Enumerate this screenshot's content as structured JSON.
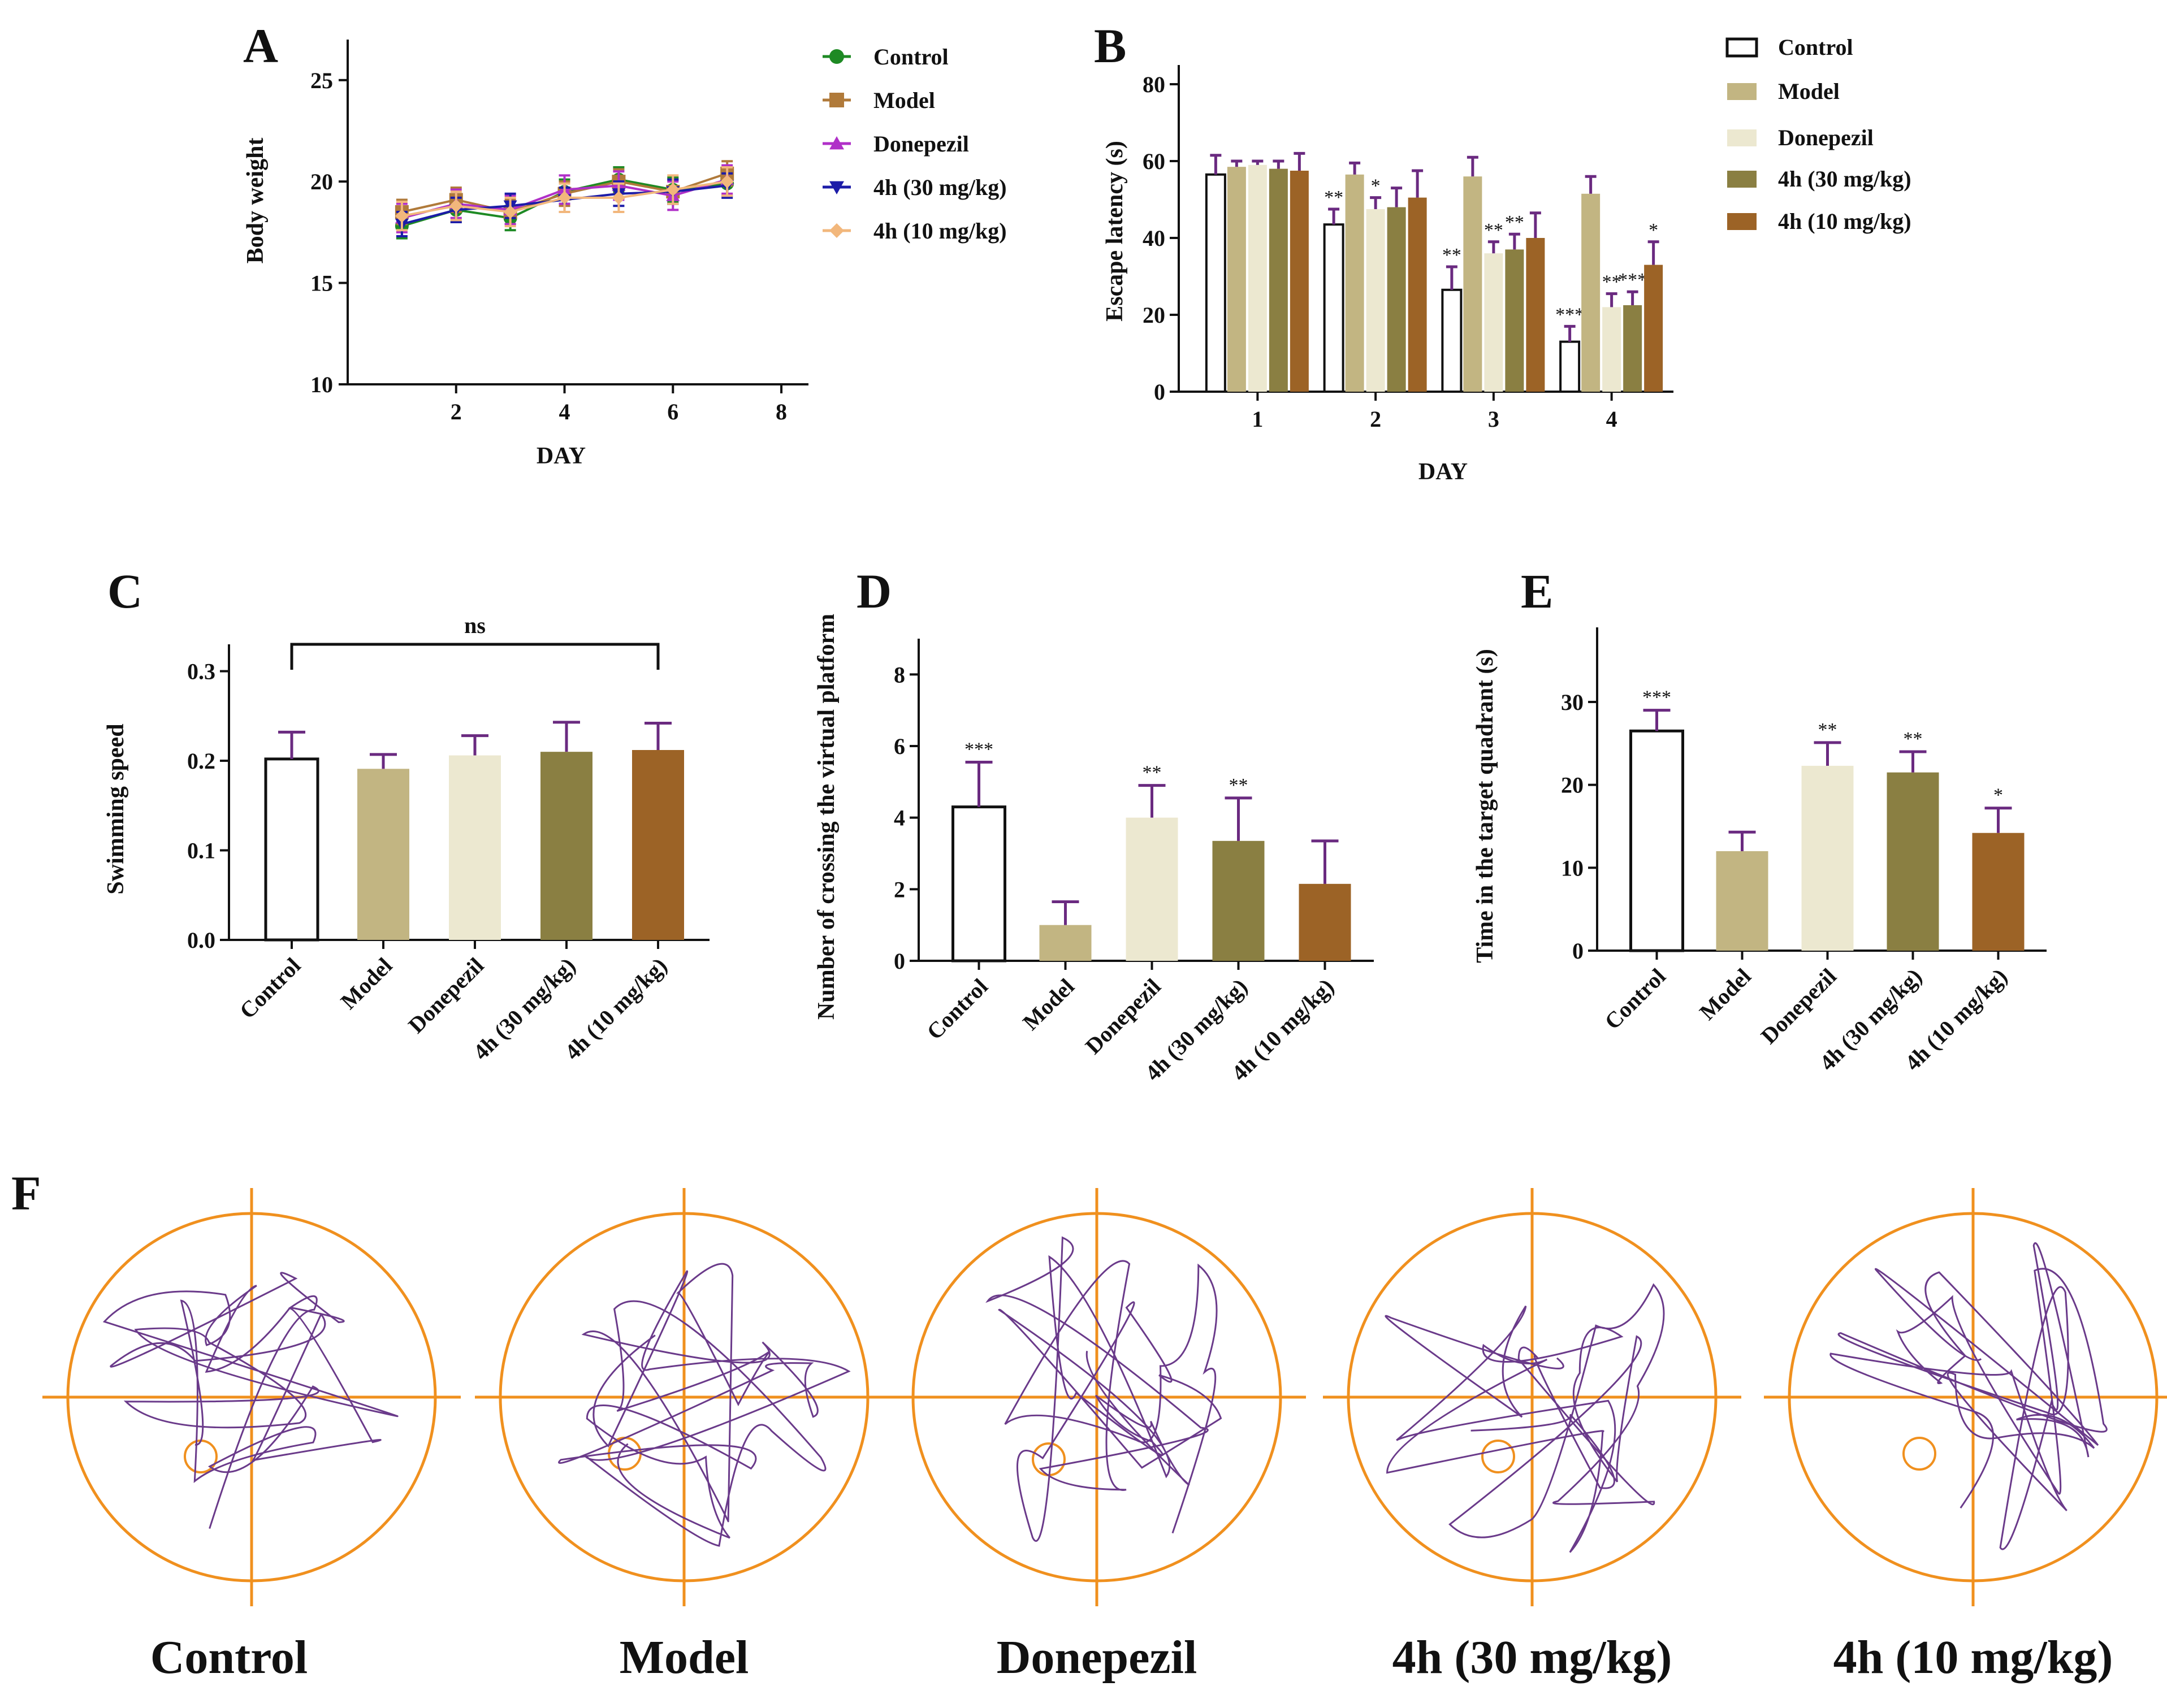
{
  "colors": {
    "control": "#ffffff",
    "model": "#c2b582",
    "donepezil": "#ece8d0",
    "h4_30": "#8a7f42",
    "h4_10": "#9c6326",
    "line_control": "#1e8a24",
    "line_model": "#b07a3a",
    "line_donepezil": "#b030c8",
    "line_h4_30": "#1c1ca8",
    "line_h4_10": "#f2b77c",
    "error_bar": "#6a2a80",
    "pool": "#f0901e",
    "path": "#6a3a8a"
  },
  "panels": {
    "A": "A",
    "B": "B",
    "C": "C",
    "D": "D",
    "E": "E",
    "F": "F"
  },
  "chart_data": [
    {
      "id": "A",
      "type": "line",
      "title": "",
      "xlabel": "DAY",
      "ylabel": "Body weight",
      "xlim": [
        0,
        8.5
      ],
      "ylim": [
        10,
        27
      ],
      "xticks": [
        "2",
        "4",
        "6",
        "8"
      ],
      "yticks": [
        "10",
        "15",
        "20",
        "25"
      ],
      "x": [
        1,
        2,
        3,
        4,
        5,
        6,
        7
      ],
      "series": [
        {
          "name": "Control",
          "marker": "circle",
          "values": [
            17.8,
            18.6,
            18.2,
            19.5,
            20.1,
            19.6,
            19.9
          ],
          "err": 0.6
        },
        {
          "name": "Model",
          "marker": "square",
          "values": [
            18.5,
            19.1,
            18.5,
            19.4,
            20.0,
            19.5,
            20.4
          ],
          "err": 0.6
        },
        {
          "name": "Donepezil",
          "marker": "triangle-up",
          "values": [
            18.2,
            18.9,
            18.6,
            19.6,
            19.8,
            19.3,
            20.1
          ],
          "err": 0.7
        },
        {
          "name": "4h (30 mg/kg)",
          "marker": "triangle-down",
          "values": [
            17.9,
            18.6,
            18.8,
            19.1,
            19.4,
            19.5,
            19.8
          ],
          "err": 0.6
        },
        {
          "name": "4h (10 mg/kg)",
          "marker": "diamond",
          "values": [
            18.3,
            18.8,
            18.5,
            19.2,
            19.2,
            19.6,
            20.0
          ],
          "err": 0.7
        }
      ]
    },
    {
      "id": "B",
      "type": "bar",
      "title": "",
      "xlabel": "DAY",
      "ylabel": "Escape latency (s)",
      "ylim": [
        0,
        85
      ],
      "yticks": [
        "0",
        "20",
        "40",
        "60",
        "80"
      ],
      "categories": [
        "1",
        "2",
        "3",
        "4"
      ],
      "series": [
        {
          "name": "Control",
          "values": [
            56.5,
            43.5,
            26.5,
            13.0
          ],
          "err": [
            5.0,
            4.0,
            6.0,
            4.0
          ],
          "sig": [
            "",
            "**",
            "**",
            "***"
          ]
        },
        {
          "name": "Model",
          "values": [
            58.5,
            56.5,
            56.0,
            51.5
          ],
          "err": [
            1.5,
            3.0,
            5.0,
            4.5
          ],
          "sig": [
            "",
            "",
            "",
            ""
          ]
        },
        {
          "name": "Donepezil",
          "values": [
            59.0,
            47.5,
            36.0,
            22.0
          ],
          "err": [
            1.0,
            3.0,
            3.0,
            3.5
          ],
          "sig": [
            "",
            "*",
            "**",
            "**"
          ]
        },
        {
          "name": "4h (30 mg/kg)",
          "values": [
            58.0,
            48.0,
            37.0,
            22.5
          ],
          "err": [
            2.0,
            5.0,
            4.0,
            3.5
          ],
          "sig": [
            "",
            "",
            "**",
            "***"
          ]
        },
        {
          "name": "4h (10 mg/kg)",
          "values": [
            57.5,
            50.5,
            40.0,
            33.0
          ],
          "err": [
            4.5,
            7.0,
            6.5,
            6.0
          ],
          "sig": [
            "",
            "",
            "",
            "*"
          ]
        }
      ]
    },
    {
      "id": "C",
      "type": "bar",
      "title": "",
      "xlabel": "",
      "ylabel": "Swimming speed",
      "ylim": [
        0,
        0.33
      ],
      "yticks": [
        "0.0",
        "0.1",
        "0.2",
        "0.3"
      ],
      "categories": [
        "Control",
        "Model",
        "Donepezil",
        "4h (30 mg/kg)",
        "4h (10 mg/kg)"
      ],
      "values": [
        0.202,
        0.191,
        0.206,
        0.21,
        0.212
      ],
      "err": [
        0.03,
        0.016,
        0.022,
        0.033,
        0.03
      ],
      "sig": [
        "",
        "",
        "",
        "",
        ""
      ],
      "annotation": "ns"
    },
    {
      "id": "D",
      "type": "bar",
      "title": "",
      "xlabel": "",
      "ylabel": "Number of crossing the virtual platform",
      "ylim": [
        0,
        9
      ],
      "yticks": [
        "0",
        "2",
        "4",
        "6",
        "8"
      ],
      "categories": [
        "Control",
        "Model",
        "Donepezil",
        "4h (30 mg/kg)",
        "4h (10 mg/kg)"
      ],
      "values": [
        4.3,
        1.0,
        4.0,
        3.35,
        2.15
      ],
      "err": [
        1.25,
        0.65,
        0.9,
        1.2,
        1.2
      ],
      "sig": [
        "***",
        "",
        "**",
        "**",
        ""
      ]
    },
    {
      "id": "E",
      "type": "bar",
      "title": "",
      "xlabel": "",
      "ylabel": "Time in the target quadrant (s)",
      "ylim": [
        0,
        39
      ],
      "yticks": [
        "0",
        "10",
        "20",
        "30"
      ],
      "categories": [
        "Control",
        "Model",
        "Donepezil",
        "4h (30 mg/kg)",
        "4h (10 mg/kg)"
      ],
      "values": [
        26.5,
        12.0,
        22.3,
        21.5,
        14.2
      ],
      "err": [
        2.5,
        2.3,
        2.8,
        2.5,
        3.0
      ],
      "sig": [
        "***",
        "",
        "**",
        "**",
        "*"
      ]
    }
  ],
  "mazes": [
    {
      "label": "Control"
    },
    {
      "label": "Model"
    },
    {
      "label": "Donepezil"
    },
    {
      "label": "4h  (30 mg/kg)"
    },
    {
      "label": "4h  (10 mg/kg)"
    }
  ]
}
